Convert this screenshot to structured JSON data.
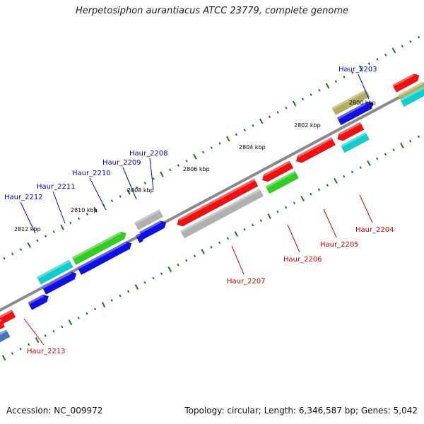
{
  "title": "Herpetosiphon aurantiacus ATCC 23779, complete genome",
  "footer": {
    "accession": "Accession: NC_009972",
    "topology": "Topology: circular; Length: 6,346,587 bp; Genes: 5,042"
  },
  "colors": {
    "red": "#ee1111",
    "blue": "#1010e0",
    "green": "#33cc22",
    "cyan": "#11cccc",
    "gray": "#b0b0b0",
    "olive": "#b4ad5e",
    "steelblue": "#4477bb",
    "label_forward": "#0000cc",
    "label_reverse": "#cc0000",
    "backbone": "#8a8a8a",
    "tick": "#1a7a1a"
  },
  "scale_labels": [
    {
      "text": "2800 kbp",
      "kbp": 2800
    },
    {
      "text": "2802 kbp",
      "kbp": 2802
    },
    {
      "text": "2804 kbp",
      "kbp": 2804
    },
    {
      "text": "2806 kbp",
      "kbp": 2806
    },
    {
      "text": "2808 kbp",
      "kbp": 2808
    },
    {
      "text": "2810 kbp",
      "kbp": 2810
    },
    {
      "text": "2812 kbp",
      "kbp": 2812
    }
  ],
  "gene_labels": [
    {
      "id": "haur-2203",
      "text": "Haur_2203",
      "strand": "forward"
    },
    {
      "id": "haur-2204",
      "text": "Haur_2204",
      "strand": "reverse"
    },
    {
      "id": "haur-2205",
      "text": "Haur_2205",
      "strand": "reverse"
    },
    {
      "id": "haur-2206",
      "text": "Haur_2206",
      "strand": "reverse"
    },
    {
      "id": "haur-2207",
      "text": "Haur_2207",
      "strand": "reverse"
    },
    {
      "id": "haur-2208",
      "text": "Haur_2208",
      "strand": "forward"
    },
    {
      "id": "haur-2209",
      "text": "Haur_2209",
      "strand": "forward"
    },
    {
      "id": "haur-2210",
      "text": "Haur_2210",
      "strand": "forward"
    },
    {
      "id": "haur-2211",
      "text": "Haur_2211",
      "strand": "forward"
    },
    {
      "id": "haur-2212",
      "text": "Haur_2212",
      "strand": "forward"
    },
    {
      "id": "haur-2213",
      "text": "Haur_2213",
      "strand": "reverse"
    }
  ]
}
